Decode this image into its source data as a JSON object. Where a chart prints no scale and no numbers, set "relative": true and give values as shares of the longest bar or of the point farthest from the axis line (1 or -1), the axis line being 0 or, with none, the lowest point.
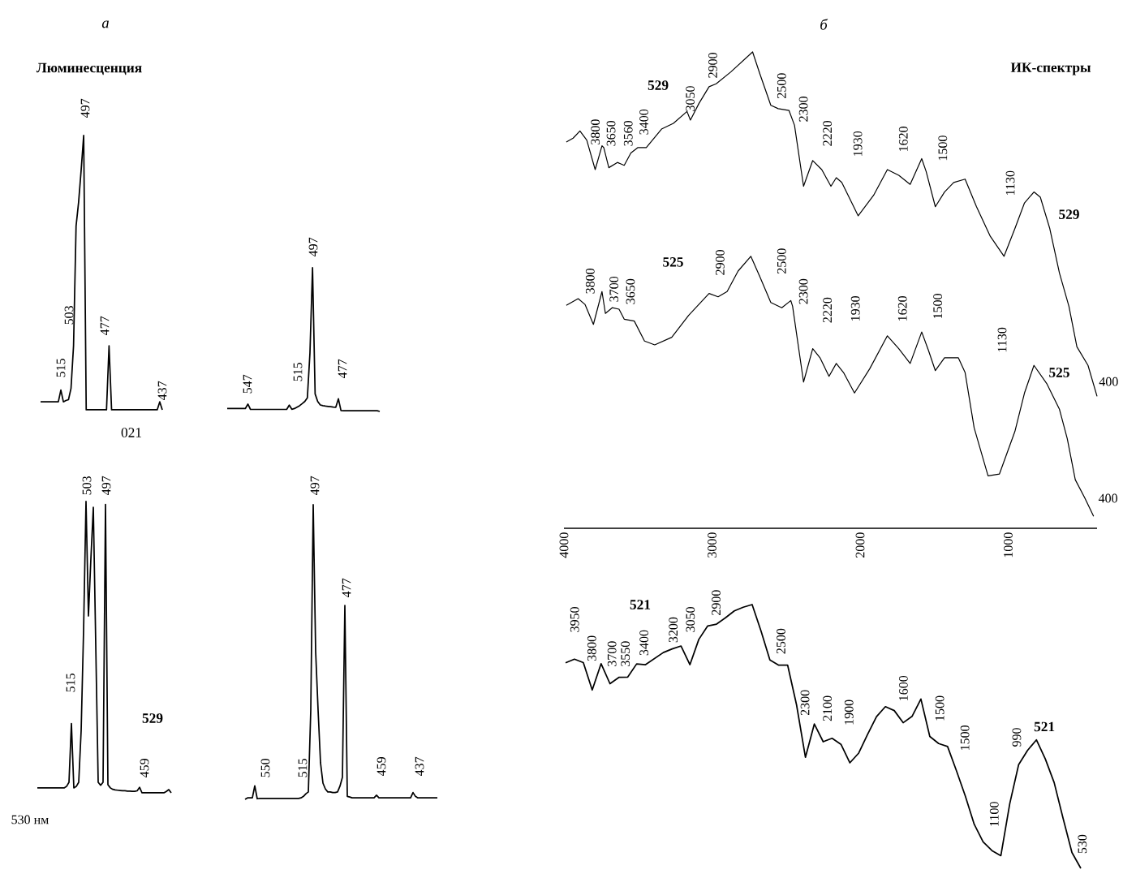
{
  "chart_data": [
    {
      "type": "line",
      "title": "а",
      "subtitle": "Люминесценция",
      "relative": true,
      "categories": [
        null,
        null,
        null,
        null,
        null,
        null,
        null,
        null,
        null,
        null,
        null,
        null,
        null,
        null,
        null,
        null,
        null,
        null,
        null,
        null,
        null,
        null,
        null,
        null,
        null,
        null,
        null,
        null,
        null,
        null,
        null,
        null,
        null,
        null,
        null,
        null,
        null,
        null,
        null,
        null,
        null,
        null,
        null,
        null,
        null,
        null,
        null,
        null,
        null
      ],
      "series": [
        {
          "name": "021",
          "color": "#000000",
          "values": [
            0.029,
            0.029,
            0.029,
            0.029,
            0.029,
            0.029,
            0.029,
            0.029,
            0.072,
            0.029,
            0.034,
            0.037,
            0.078,
            0.233,
            0.67,
            0.757,
            0.874,
            1.0,
            0,
            0,
            0,
            0,
            0,
            0,
            0,
            0,
            0,
            0.233,
            0,
            0,
            0,
            0,
            0,
            0,
            0,
            0,
            0,
            0,
            0,
            0,
            0,
            0,
            0,
            0,
            0,
            0,
            0,
            0.029,
            0
          ]
        }
      ],
      "annotations": [
        "515",
        "503",
        "497",
        "477",
        "437"
      ]
    },
    {
      "type": "line",
      "relative": true,
      "categories": [
        null,
        null,
        null,
        null,
        null,
        null,
        null,
        null,
        null,
        null,
        null,
        null,
        null,
        null,
        null,
        null,
        null,
        null,
        null,
        null,
        null,
        null,
        null,
        null,
        null,
        null,
        null,
        null,
        null,
        null,
        null,
        null,
        null,
        null,
        null,
        null,
        null,
        null,
        null,
        null,
        null,
        null,
        null,
        null,
        null,
        null,
        null,
        null,
        null,
        null,
        null,
        null,
        null,
        null,
        null,
        null,
        null,
        null,
        null,
        null
      ],
      "series": [
        {
          "color": "#000000",
          "values": [
            0.02,
            0.02,
            0.02,
            0.02,
            0.02,
            0.02,
            0.02,
            0.02,
            0.051,
            0.014,
            0.014,
            0.014,
            0.014,
            0.014,
            0.014,
            0.014,
            0.014,
            0.014,
            0.014,
            0.014,
            0.014,
            0.014,
            0.014,
            0.014,
            0.044,
            0.015,
            0.02,
            0.03,
            0.04,
            0.054,
            0.069,
            0.094,
            0.406,
            1.0,
            0.122,
            0.069,
            0.045,
            0.04,
            0.037,
            0.035,
            0.033,
            0.03,
            0.029,
            0.088,
            0.006,
            0.005,
            0.005,
            0.005,
            0.005,
            0.005,
            0.005,
            0.005,
            0.005,
            0.005,
            0.005,
            0.005,
            0.005,
            0.005,
            0.005,
            0
          ]
        }
      ],
      "annotations": [
        "547",
        "515",
        "497",
        "477"
      ]
    },
    {
      "type": "line",
      "relative": true,
      "categories": [
        null,
        null,
        null,
        null,
        null,
        null,
        null,
        null,
        null,
        null,
        null,
        null,
        null,
        null,
        null,
        null,
        null,
        null,
        null,
        null,
        null,
        null,
        null,
        null,
        null,
        null,
        null,
        null,
        null,
        null,
        null,
        null,
        null,
        null,
        null,
        null,
        null,
        null,
        null,
        null,
        null,
        null,
        null,
        null,
        null,
        null,
        null,
        null,
        null,
        null,
        null,
        null,
        null,
        null,
        null,
        null
      ],
      "series": [
        {
          "name": "529",
          "color": "#000000",
          "values": [
            0.017,
            0.017,
            0.017,
            0.017,
            0.017,
            0.017,
            0.017,
            0.017,
            0.017,
            0.017,
            0.017,
            0.017,
            0.022,
            0.036,
            0.238,
            0.017,
            0.022,
            0.036,
            0.213,
            0.558,
            1.0,
            0.607,
            0.803,
            0.98,
            0.508,
            0.036,
            0.026,
            0.036,
            0.99,
            0.028,
            0.017,
            0.012,
            0.01,
            0.009,
            0.008,
            0.007,
            0.007,
            0.006,
            0.006,
            0.005,
            0.005,
            0.007,
            0.019,
            0,
            0,
            0,
            0,
            0,
            0,
            0,
            0,
            0,
            0,
            0.005,
            0.011,
            0
          ]
        }
      ],
      "annotations": [
        "515",
        "503",
        "497",
        "459",
        "530 нм"
      ]
    },
    {
      "type": "line",
      "relative": true,
      "categories": [
        null,
        null,
        null,
        null,
        null,
        null,
        null,
        null,
        null,
        null,
        null,
        null,
        null,
        null,
        null,
        null,
        null,
        null,
        null,
        null,
        null,
        null,
        null,
        null,
        null,
        null,
        null,
        null,
        null,
        null,
        null,
        null,
        null,
        null,
        null,
        null,
        null,
        null,
        null,
        null,
        null,
        null,
        null,
        null,
        null,
        null,
        null,
        null,
        null,
        null,
        null,
        null,
        null,
        null,
        null,
        null,
        null,
        null,
        null,
        null,
        null,
        null,
        null,
        null,
        null,
        null,
        null,
        null,
        null,
        null,
        null,
        null,
        null,
        null,
        null,
        null,
        null,
        null,
        null,
        null
      ],
      "series": [
        {
          "color": "#000000",
          "values": [
            0,
            0.005,
            0.005,
            0.005,
            0.046,
            0.002,
            0.003,
            0.003,
            0.003,
            0.003,
            0.003,
            0.003,
            0.003,
            0.003,
            0.003,
            0.003,
            0.003,
            0.003,
            0.003,
            0.003,
            0.003,
            0.003,
            0.003,
            0.005,
            0.01,
            0.019,
            0.025,
            0.303,
            1.0,
            0.502,
            0.303,
            0.124,
            0.055,
            0.035,
            0.025,
            0.025,
            0.023,
            0.023,
            0.025,
            0.045,
            0.075,
            0.658,
            0.01,
            0.008,
            0.005,
            0.005,
            0.005,
            0.005,
            0.005,
            0.005,
            0.005,
            0.005,
            0.005,
            0.005,
            0.014,
            0.005,
            0.005,
            0.005,
            0.005,
            0.005,
            0.005,
            0.005,
            0.005,
            0.005,
            0.005,
            0.005,
            0.005,
            0.005,
            0.005,
            0.023,
            0.01,
            0.005,
            0.005,
            0.005,
            0.005,
            0.005,
            0.005,
            0.005,
            0.005,
            0.005
          ]
        }
      ],
      "annotations": [
        "550",
        "515",
        "497",
        "477",
        "459",
        "437"
      ]
    },
    {
      "type": "line",
      "title": "б",
      "subtitle": "ИК-спектры",
      "relative": true,
      "xlim": [
        4000,
        400
      ],
      "xticks": [
        4000,
        3000,
        2000,
        1000
      ],
      "tick_labels": "x",
      "series": [
        {
          "name": "529",
          "color": "#000000",
          "x": [
            3984,
            3938,
            3892,
            3846,
            3789,
            3743,
            3731,
            3697,
            3639,
            3593,
            3548,
            3502,
            3444,
            3341,
            3261,
            3169,
            3146,
            3088,
            3020,
            2972,
            2873,
            2726,
            2677,
            2603,
            2553,
            2480,
            2443,
            2382,
            2320,
            2259,
            2197,
            2161,
            2124,
            2013,
            1909,
            1816,
            1739,
            1662,
            1584,
            1554,
            1492,
            1430,
            1368,
            1291,
            1214,
            1121,
            1028,
            955,
            890,
            826,
            783,
            719,
            654,
            590,
            536,
            461,
            400
          ],
          "values": [
            0.811,
            0.819,
            0.834,
            0.815,
            0.753,
            0.803,
            0.799,
            0.757,
            0.768,
            0.762,
            0.788,
            0.799,
            0.799,
            0.838,
            0.85,
            0.875,
            0.857,
            0.892,
            0.927,
            0.933,
            0.958,
            1.0,
            0.954,
            0.888,
            0.881,
            0.877,
            0.846,
            0.718,
            0.772,
            0.753,
            0.718,
            0.736,
            0.726,
            0.656,
            0.699,
            0.753,
            0.741,
            0.722,
            0.776,
            0.749,
            0.675,
            0.706,
            0.726,
            0.733,
            0.675,
            0.613,
            0.571,
            0.629,
            0.683,
            0.706,
            0.695,
            0.629,
            0.536,
            0.466,
            0.381,
            0.342,
            0.277
          ]
        },
        {
          "name": "525",
          "color": "#000000",
          "x": [
            3984,
            3904,
            3858,
            3801,
            3743,
            3720,
            3674,
            3628,
            3593,
            3525,
            3456,
            3387,
            3272,
            3158,
            3020,
            2959,
            2898,
            2824,
            2738,
            2677,
            2603,
            2529,
            2468,
            2456,
            2382,
            2320,
            2271,
            2210,
            2161,
            2112,
            2038,
            1935,
            1816,
            1739,
            1662,
            1584,
            1538,
            1492,
            1430,
            1337,
            1291,
            1230,
            1136,
            1059,
            955,
            890,
            826,
            740,
            654,
            601,
            547,
            483,
            423
          ],
          "values": [
            0.468,
            0.482,
            0.47,
            0.428,
            0.497,
            0.451,
            0.463,
            0.46,
            0.439,
            0.435,
            0.393,
            0.385,
            0.401,
            0.447,
            0.493,
            0.486,
            0.497,
            0.54,
            0.571,
            0.528,
            0.474,
            0.463,
            0.478,
            0.466,
            0.307,
            0.377,
            0.358,
            0.319,
            0.346,
            0.327,
            0.284,
            0.335,
            0.404,
            0.377,
            0.346,
            0.412,
            0.373,
            0.331,
            0.358,
            0.358,
            0.327,
            0.211,
            0.11,
            0.114,
            0.203,
            0.284,
            0.342,
            0.304,
            0.25,
            0.188,
            0.102,
            0.064,
            0.025
          ]
        }
      ],
      "annotations": [
        "3800",
        "3650",
        "3560",
        "3400",
        "3050",
        "2900",
        "2500",
        "2300",
        "2220",
        "1930",
        "1620",
        "1500",
        "1130",
        "400",
        "3800",
        "3700",
        "3650",
        "2900",
        "2500",
        "2300",
        "2220",
        "1930",
        "1620",
        "1500",
        "1130",
        "400"
      ]
    },
    {
      "type": "line",
      "relative": true,
      "categories": [
        null,
        null,
        null,
        null,
        null,
        null,
        null,
        null,
        null,
        null,
        null,
        null,
        null,
        null,
        null,
        null,
        null,
        null,
        null,
        null,
        null,
        null,
        null,
        null,
        null,
        null,
        null,
        null,
        null,
        null,
        null,
        null,
        null,
        null,
        null,
        null,
        null,
        null,
        null,
        null,
        null,
        null,
        null,
        null,
        null,
        null,
        null,
        null,
        null,
        null,
        null,
        null,
        null,
        null,
        null,
        null,
        null,
        null,
        null
      ],
      "series": [
        {
          "name": "521",
          "color": "#000000",
          "values": [
            0.779,
            0.793,
            0.78,
            0.676,
            0.776,
            0.7,
            0.724,
            0.725,
            0.775,
            0.772,
            0.795,
            0.818,
            0.832,
            0.843,
            0.772,
            0.868,
            0.919,
            0.926,
            0.95,
            0.976,
            0.99,
            1.0,
            0.9,
            0.79,
            0.77,
            0.77,
            0.62,
            0.421,
            0.547,
            0.48,
            0.493,
            0.47,
            0.4,
            0.437,
            0.508,
            0.575,
            0.613,
            0.598,
            0.552,
            0.576,
            0.642,
            0.5,
            0.473,
            0.462,
            0.37,
            0.274,
            0.167,
            0.1,
            0.067,
            0.048,
            0.245,
            0.393,
            0.447,
            0.487,
            0.415,
            0.325,
            0.19,
            0.06,
            0
          ]
        }
      ],
      "annotations": [
        "3950",
        "3800",
        "3700",
        "3550",
        "3400",
        "3200",
        "3050",
        "2900",
        "2500",
        "2300",
        "2100",
        "1900",
        "1600",
        "1500",
        "1500",
        "1100",
        "990",
        "530"
      ]
    }
  ]
}
